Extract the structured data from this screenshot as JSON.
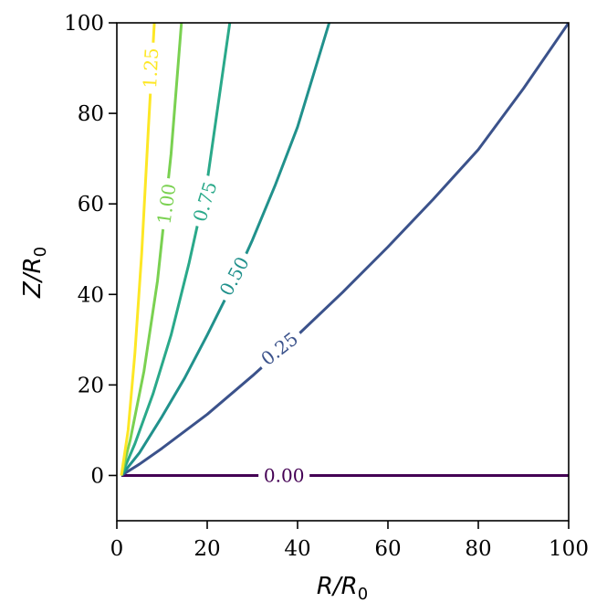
{
  "chart_data": {
    "type": "line",
    "title": "",
    "xlabel": "R/R0",
    "ylabel": "Z/R0",
    "xlim": [
      0,
      100
    ],
    "ylim": [
      -10,
      100
    ],
    "xticks": [
      "0",
      "20",
      "40",
      "60",
      "80",
      "100"
    ],
    "yticks": [
      "0",
      "20",
      "40",
      "60",
      "80",
      "100"
    ],
    "grid": false,
    "legend": "none",
    "series": [
      {
        "label": "0.00",
        "color": "#440154",
        "x": [
          1,
          10,
          20,
          40,
          60,
          80,
          100
        ],
        "y": [
          0,
          0,
          0,
          0,
          0,
          0,
          0
        ],
        "label_at": [
          37,
          0
        ],
        "label_angle": 0
      },
      {
        "label": "0.25",
        "color": "#3b528b",
        "x": [
          1,
          5,
          10,
          20,
          30,
          40,
          50,
          60,
          70,
          80,
          90,
          100
        ],
        "y": [
          0,
          2.5,
          6,
          13.5,
          22,
          31,
          40.5,
          50.5,
          61,
          72,
          85.5,
          100
        ],
        "label_at": [
          36,
          28
        ],
        "label_angle": -38
      },
      {
        "label": "0.50",
        "color": "#21918c",
        "x": [
          1,
          5,
          10,
          15,
          20,
          25,
          30,
          35,
          40,
          47
        ],
        "y": [
          0,
          5,
          13,
          21.5,
          31,
          41,
          52,
          64,
          77,
          100
        ],
        "label_at": [
          26,
          44
        ],
        "label_angle": -62
      },
      {
        "label": "0.75",
        "color": "#2aa98a",
        "x": [
          1,
          4,
          8,
          12,
          16,
          20,
          25
        ],
        "y": [
          0,
          7,
          18,
          31,
          47,
          65,
          100
        ],
        "label_at": [
          19.5,
          60.5
        ],
        "label_angle": -73
      },
      {
        "label": "1.00",
        "color": "#7ad151",
        "x": [
          1,
          3,
          6,
          9,
          12,
          14.3
        ],
        "y": [
          0,
          8,
          23,
          43,
          71,
          100
        ],
        "label_at": [
          11,
          60
        ],
        "label_angle": -82
      },
      {
        "label": "1.25",
        "color": "#fde725",
        "x": [
          1,
          2.5,
          4,
          5.5,
          7,
          8.3
        ],
        "y": [
          0,
          10,
          27,
          49,
          77,
          100
        ],
        "label_at": [
          7.5,
          90
        ],
        "label_angle": -87
      }
    ]
  }
}
